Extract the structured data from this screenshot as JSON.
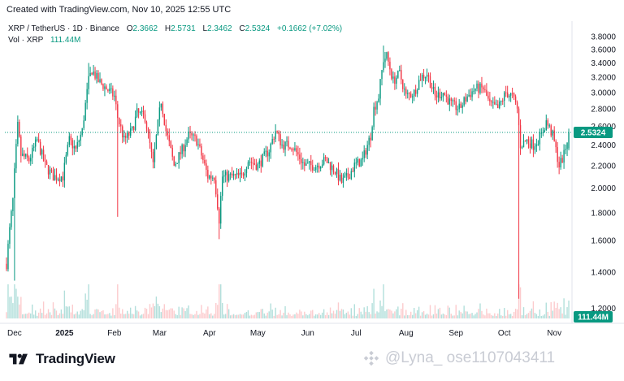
{
  "header": {
    "created_text": "Created with TradingView.com, Nov 10, 2025 12:55 UTC"
  },
  "legend": {
    "symbol": "XRP / TetherUS · 1D · Binance",
    "open_label": "O",
    "open_value": "2.3662",
    "high_label": "H",
    "high_value": "2.5731",
    "low_label": "L",
    "low_value": "2.3462",
    "close_label": "C",
    "close_value": "2.5324",
    "change": "+0.1662 (+7.02%)",
    "volume_label": "Vol · XRP",
    "volume_value": "111.44M"
  },
  "colors": {
    "up": "#089981",
    "down": "#f23645",
    "up_vol": "#b2dfdb",
    "down_vol": "#fccbcd",
    "price_tag": "#089981",
    "grid": "#f0f3fa",
    "axis_text": "#131722"
  },
  "branding": {
    "logo_icon": "tradingview-logo-icon",
    "name": "TradingView"
  },
  "watermark": {
    "icon": "binance-square-icon",
    "text": "@Lyna_  ose1107043411"
  },
  "chart_data": {
    "type": "candlestick",
    "title": "XRP / TetherUS · 1D · Binance",
    "xlabel": "",
    "ylabel": "",
    "y_scale": "log",
    "ylim": [
      1.15,
      3.95
    ],
    "y_ticks": [
      "3.8000",
      "3.6000",
      "3.4000",
      "3.2000",
      "3.0000",
      "2.8000",
      "2.6000",
      "2.4000",
      "2.2000",
      "2.0000",
      "1.8000",
      "1.6000",
      "1.4000",
      "1.2000"
    ],
    "x_ticks": [
      "Dec",
      "2025",
      "Feb",
      "Mar",
      "Apr",
      "May",
      "Jun",
      "Jul",
      "Aug",
      "Sep",
      "Oct",
      "Nov"
    ],
    "x_tick_dates": [
      "2024-12-01",
      "2025-01-01",
      "2025-02-01",
      "2025-03-01",
      "2025-04-01",
      "2025-05-01",
      "2025-06-01",
      "2025-07-01",
      "2025-08-01",
      "2025-09-01",
      "2025-10-01",
      "2025-11-01"
    ],
    "last_price": "2.5324",
    "last_volume": "111.44M",
    "grid": false,
    "series": [
      {
        "name": "XRP / TetherUS",
        "close_path": [
          [
            "2024-11-26",
            1.45
          ],
          [
            "2024-11-30",
            1.9
          ],
          [
            "2024-12-03",
            2.6
          ],
          [
            "2024-12-05",
            2.3
          ],
          [
            "2024-12-10",
            2.25
          ],
          [
            "2024-12-15",
            2.45
          ],
          [
            "2024-12-20",
            2.2
          ],
          [
            "2024-12-25",
            2.1
          ],
          [
            "2024-12-31",
            2.1
          ],
          [
            "2025-01-04",
            2.45
          ],
          [
            "2025-01-08",
            2.35
          ],
          [
            "2025-01-12",
            2.55
          ],
          [
            "2025-01-16",
            3.15
          ],
          [
            "2025-01-18",
            3.3
          ],
          [
            "2025-01-22",
            3.15
          ],
          [
            "2025-01-27",
            3.05
          ],
          [
            "2025-02-01",
            2.95
          ],
          [
            "2025-02-03",
            2.7
          ],
          [
            "2025-02-07",
            2.45
          ],
          [
            "2025-02-12",
            2.55
          ],
          [
            "2025-02-15",
            2.75
          ],
          [
            "2025-02-20",
            2.7
          ],
          [
            "2025-02-25",
            2.2
          ],
          [
            "2025-03-02",
            2.9
          ],
          [
            "2025-03-05",
            2.55
          ],
          [
            "2025-03-10",
            2.2
          ],
          [
            "2025-03-15",
            2.35
          ],
          [
            "2025-03-19",
            2.5
          ],
          [
            "2025-03-24",
            2.45
          ],
          [
            "2025-03-31",
            2.1
          ],
          [
            "2025-04-04",
            2.1
          ],
          [
            "2025-04-07",
            1.75
          ],
          [
            "2025-04-09",
            2.1
          ],
          [
            "2025-04-15",
            2.1
          ],
          [
            "2025-04-21",
            2.1
          ],
          [
            "2025-04-25",
            2.25
          ],
          [
            "2025-05-01",
            2.2
          ],
          [
            "2025-05-08",
            2.35
          ],
          [
            "2025-05-12",
            2.55
          ],
          [
            "2025-05-16",
            2.4
          ],
          [
            "2025-05-22",
            2.4
          ],
          [
            "2025-05-30",
            2.2
          ],
          [
            "2025-06-06",
            2.2
          ],
          [
            "2025-06-12",
            2.25
          ],
          [
            "2025-06-18",
            2.15
          ],
          [
            "2025-06-22",
            2.05
          ],
          [
            "2025-06-26",
            2.1
          ],
          [
            "2025-06-30",
            2.2
          ],
          [
            "2025-07-05",
            2.25
          ],
          [
            "2025-07-10",
            2.5
          ],
          [
            "2025-07-12",
            2.8
          ],
          [
            "2025-07-15",
            2.95
          ],
          [
            "2025-07-18",
            3.45
          ],
          [
            "2025-07-20",
            3.5
          ],
          [
            "2025-07-24",
            3.15
          ],
          [
            "2025-07-28",
            3.25
          ],
          [
            "2025-08-01",
            2.95
          ],
          [
            "2025-08-06",
            3.0
          ],
          [
            "2025-08-10",
            3.2
          ],
          [
            "2025-08-14",
            3.25
          ],
          [
            "2025-08-19",
            2.95
          ],
          [
            "2025-08-24",
            3.0
          ],
          [
            "2025-08-29",
            2.85
          ],
          [
            "2025-09-03",
            2.8
          ],
          [
            "2025-09-08",
            2.95
          ],
          [
            "2025-09-13",
            3.05
          ],
          [
            "2025-09-18",
            3.05
          ],
          [
            "2025-09-22",
            2.85
          ],
          [
            "2025-09-27",
            2.8
          ],
          [
            "2025-10-02",
            3.0
          ],
          [
            "2025-10-06",
            2.95
          ],
          [
            "2025-10-09",
            2.8
          ],
          [
            "2025-10-11",
            2.4
          ],
          [
            "2025-10-15",
            2.45
          ],
          [
            "2025-10-19",
            2.4
          ],
          [
            "2025-10-24",
            2.5
          ],
          [
            "2025-10-27",
            2.65
          ],
          [
            "2025-10-31",
            2.5
          ],
          [
            "2025-11-04",
            2.2
          ],
          [
            "2025-11-07",
            2.3
          ],
          [
            "2025-11-10",
            2.5324
          ]
        ],
        "notable_lows": [
          [
            "2024-12-01",
            1.35
          ],
          [
            "2025-02-03",
            1.77
          ],
          [
            "2025-04-07",
            1.61
          ],
          [
            "2025-10-10",
            1.25
          ]
        ],
        "notable_highs": [
          [
            "2025-01-16",
            3.4
          ],
          [
            "2025-07-18",
            3.66
          ]
        ]
      }
    ]
  }
}
